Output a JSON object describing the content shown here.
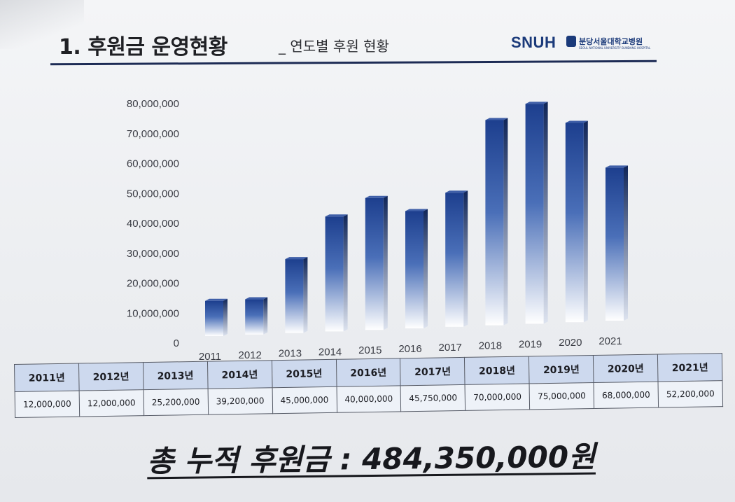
{
  "header": {
    "title": "1. 후원금 운영현황",
    "subtitle": "_ 연도별 후원 현황",
    "logo_text": "SNUH",
    "logo_korean": "분당서울대학교병원",
    "logo_english": "SEOUL NATIONAL UNIVERSITY BUNDANG HOSPITAL"
  },
  "colors": {
    "bar_top": "#1d3f8e",
    "bar_mid": "#4a6fb8",
    "bar_bottom": "#ffffff",
    "header_rule": "#1d2b55",
    "table_header_bg": "#cdd9ee"
  },
  "chart_data": {
    "type": "bar",
    "style": "3d-cylinder-gradient",
    "categories": [
      "2011",
      "2012",
      "2013",
      "2014",
      "2015",
      "2016",
      "2017",
      "2018",
      "2019",
      "2020",
      "2021"
    ],
    "values": [
      12000000,
      12000000,
      25200000,
      39200000,
      45000000,
      40000000,
      45750000,
      70000000,
      75000000,
      68000000,
      52200000
    ],
    "y_ticks": [
      "80,000,000",
      "70,000,000",
      "60,000,000",
      "50,000,000",
      "40,000,000",
      "30,000,000",
      "20,000,000",
      "10,000,000",
      "0"
    ],
    "ylim": [
      0,
      80000000
    ],
    "grid": false,
    "legend": "none"
  },
  "table": {
    "headers": [
      "2011년",
      "2012년",
      "2013년",
      "2014년",
      "2015년",
      "2016년",
      "2017년",
      "2018년",
      "2019년",
      "2020년",
      "2021년"
    ],
    "values": [
      "12,000,000",
      "12,000,000",
      "25,200,000",
      "39,200,000",
      "45,000,000",
      "40,000,000",
      "45,750,000",
      "70,000,000",
      "75,000,000",
      "68,000,000",
      "52,200,000"
    ]
  },
  "total": {
    "label": "총 누적 후원금 : 484,350,000원"
  }
}
